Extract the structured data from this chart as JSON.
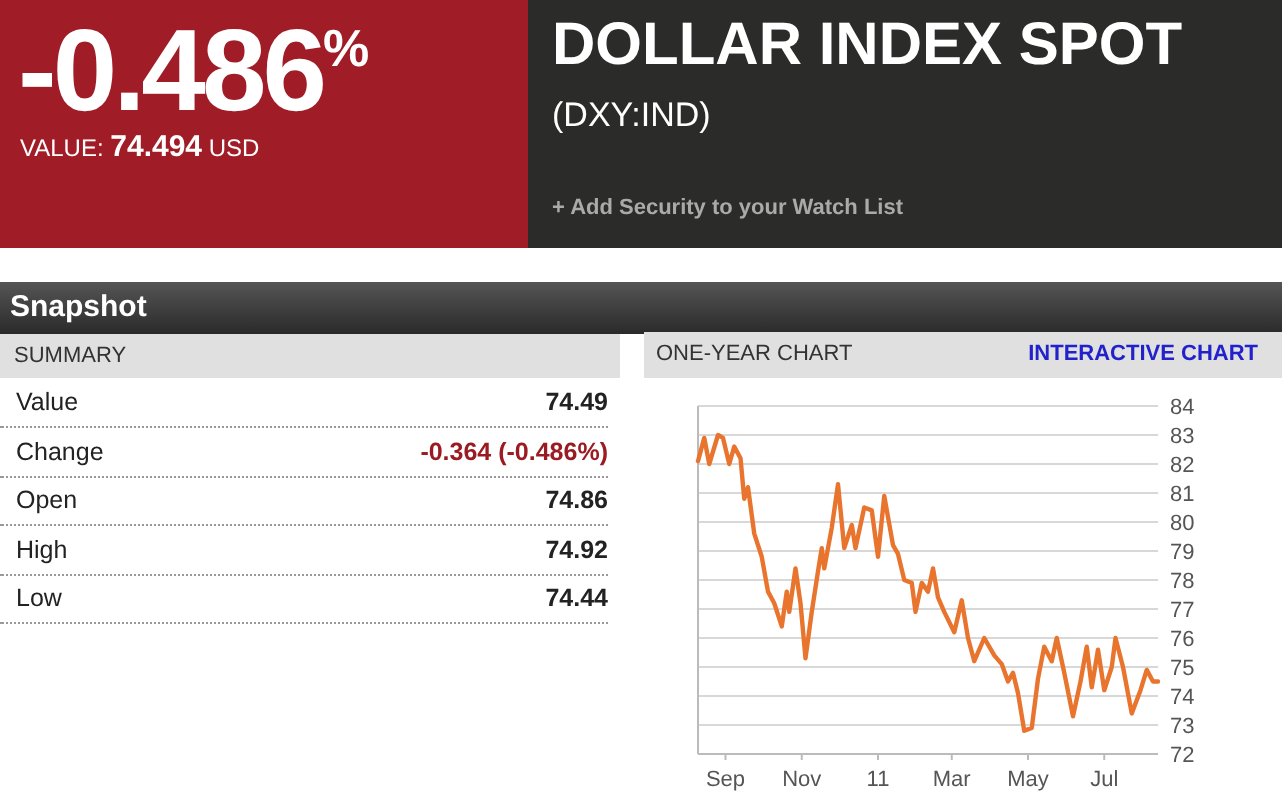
{
  "chart_data": [
    {
      "type": "other",
      "title": "DOLLAR INDEX SPOT",
      "annotations": [
        "-0.486$^{%}$",
        "VALUE:",
        "74.494",
        "USD",
        "(DXY:IND)",
        "+ Add Security to your Watch List",
        "Snapshot",
        "SUMMARY",
        "Value",
        "74.49",
        "Change",
        "-0.364 (-0.486%)",
        "Open",
        "74.86",
        "High",
        "74.92",
        "Low",
        "74.44"
      ]
    },
    {
      "type": "line",
      "title": "ONE-YEAR CHART",
      "annotations": [
        "INTERACTIVE CHART"
      ],
      "grid": "y",
      "xlim": [
        "2010-08-10",
        "2011-08-13"
      ],
      "ylim": [
        72,
        84
      ],
      "yticks": [
        72,
        73,
        74,
        75,
        76,
        77,
        78,
        79,
        80,
        81,
        82,
        83,
        84
      ],
      "xticks": [
        {
          "value": "2010-09-01",
          "label": "Sep"
        },
        {
          "value": "2010-11-01",
          "label": "Nov"
        },
        {
          "value": "2011-01-01",
          "label": "11"
        },
        {
          "value": "2011-03-01",
          "label": "Mar"
        },
        {
          "value": "2011-05-01",
          "label": "May"
        },
        {
          "value": "2011-07-01",
          "label": "Jul"
        }
      ],
      "x": [
        "2010-08-10",
        "2010-08-15",
        "2010-08-19",
        "2010-08-26",
        "2010-08-30",
        "2010-09-04",
        "2010-09-08",
        "2010-09-13",
        "2010-09-16",
        "2010-09-19",
        "2010-09-24",
        "2010-09-30",
        "2010-10-05",
        "2010-10-10",
        "2010-10-16",
        "2010-10-20",
        "2010-10-22",
        "2010-10-27",
        "2010-10-31",
        "2010-11-04",
        "2010-11-09",
        "2010-11-14",
        "2010-11-17",
        "2010-11-19",
        "2010-11-25",
        "2010-11-30",
        "2010-12-05",
        "2010-12-11",
        "2010-12-14",
        "2010-12-21",
        "2010-12-27",
        "2011-01-01",
        "2011-01-06",
        "2011-01-13",
        "2011-01-17",
        "2011-01-22",
        "2011-01-28",
        "2011-01-31",
        "2011-02-05",
        "2011-02-10",
        "2011-02-14",
        "2011-02-18",
        "2011-02-23",
        "2011-03-03",
        "2011-03-09",
        "2011-03-14",
        "2011-03-19",
        "2011-03-27",
        "2011-04-04",
        "2011-04-10",
        "2011-04-15",
        "2011-04-19",
        "2011-04-23",
        "2011-04-28",
        "2011-05-04",
        "2011-05-09",
        "2011-05-14",
        "2011-05-20",
        "2011-05-24",
        "2011-05-30",
        "2011-06-06",
        "2011-06-12",
        "2011-06-17",
        "2011-06-21",
        "2011-06-26",
        "2011-07-01",
        "2011-07-07",
        "2011-07-10",
        "2011-07-16",
        "2011-07-23",
        "2011-07-30",
        "2011-08-04",
        "2011-08-09",
        "2011-08-13"
      ],
      "series": [
        {
          "color": "#e8742e",
          "values": [
            82.1,
            82.9,
            82.0,
            83.0,
            82.9,
            82.0,
            82.6,
            82.2,
            80.8,
            81.2,
            79.6,
            78.8,
            77.6,
            77.2,
            76.4,
            77.6,
            76.9,
            78.4,
            77.2,
            75.3,
            76.9,
            78.3,
            79.1,
            78.4,
            79.8,
            81.3,
            79.1,
            79.9,
            79.1,
            80.5,
            80.4,
            78.8,
            80.9,
            79.2,
            78.9,
            78.0,
            77.9,
            76.9,
            77.9,
            77.6,
            78.4,
            77.4,
            76.9,
            76.2,
            77.3,
            76.0,
            75.2,
            76.0,
            75.4,
            75.1,
            74.5,
            74.8,
            74.1,
            72.8,
            72.9,
            74.6,
            75.7,
            75.2,
            76.0,
            74.8,
            73.3,
            74.5,
            75.7,
            74.3,
            75.6,
            74.2,
            75.0,
            76.0,
            75.0,
            73.4,
            74.2,
            74.9,
            74.5,
            74.5
          ]
        }
      ]
    }
  ]
}
